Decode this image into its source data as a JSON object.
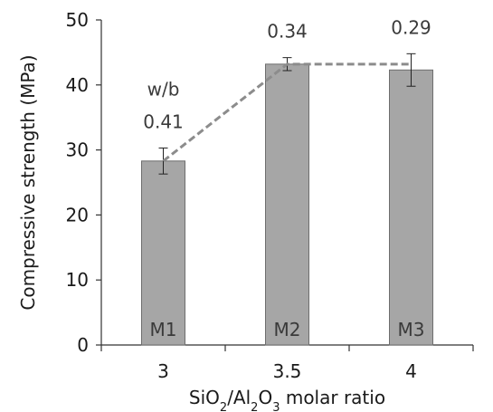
{
  "chart_data": {
    "type": "bar",
    "categories": [
      "3",
      "3.5",
      "4"
    ],
    "values": [
      28.3,
      43.2,
      42.3
    ],
    "errors": [
      2.0,
      1.0,
      2.5
    ],
    "bar_labels": [
      "M1",
      "M2",
      "M3"
    ],
    "annotations": [
      "0.41",
      "0.34",
      "0.29"
    ],
    "annotation_header": "w/b",
    "trend_line": {
      "x": [
        "3",
        "3.5",
        "4"
      ],
      "y": [
        28.3,
        43.2,
        43.2
      ]
    },
    "ylabel": "Compressive strength (MPa)",
    "xlabel": {
      "parts": [
        {
          "text": "SiO",
          "sub": false
        },
        {
          "text": "2",
          "sub": true
        },
        {
          "text": "/Al",
          "sub": false
        },
        {
          "text": "2",
          "sub": true
        },
        {
          "text": "O",
          "sub": false
        },
        {
          "text": "3",
          "sub": true
        },
        {
          "text": " molar ratio",
          "sub": false
        }
      ]
    },
    "ylim": [
      0,
      50
    ],
    "yticks": [
      "0",
      "10",
      "20",
      "30",
      "40",
      "50"
    ],
    "grid": false,
    "colors": {
      "bar_fill": "#a6a6a6",
      "bar_stroke": "#6e6e6e",
      "trend": "#8c8c8c",
      "axis": "#333333"
    }
  }
}
